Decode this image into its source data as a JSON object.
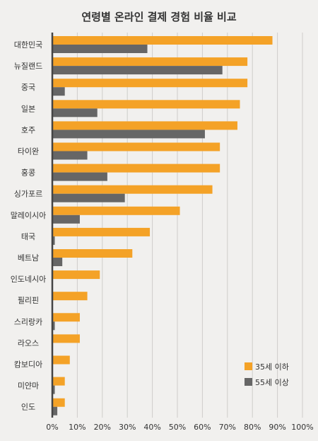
{
  "chart_data": {
    "type": "bar",
    "orientation": "horizontal",
    "title": "연령별 온라인 결제 경험 비율 비교",
    "xlabel": "",
    "ylabel": "",
    "xlim": [
      0,
      100
    ],
    "grid": true,
    "legend_position": "bottom-right",
    "categories": [
      "대한민국",
      "뉴질랜드",
      "중국",
      "일본",
      "호주",
      "타이완",
      "홍콩",
      "싱가포르",
      "말레이시아",
      "태국",
      "베트남",
      "인도네시아",
      "필리핀",
      "스리랑카",
      "라오스",
      "캄보디아",
      "미얀마",
      "인도"
    ],
    "series": [
      {
        "name": "35세 이하",
        "color": "#f4a227",
        "values": [
          88,
          78,
          78,
          75,
          74,
          67,
          67,
          64,
          51,
          39,
          32,
          19,
          14,
          11,
          11,
          7,
          5,
          5
        ]
      },
      {
        "name": "55세 이상",
        "color": "#666666",
        "values": [
          38,
          68,
          5,
          18,
          61,
          14,
          22,
          29,
          11,
          1,
          4,
          0,
          0,
          1,
          0,
          0,
          1,
          2
        ]
      }
    ],
    "xticks": [
      "0%",
      "10%",
      "20%",
      "30%",
      "40%",
      "50%",
      "60%",
      "70%",
      "80%",
      "90%",
      "100%"
    ]
  }
}
